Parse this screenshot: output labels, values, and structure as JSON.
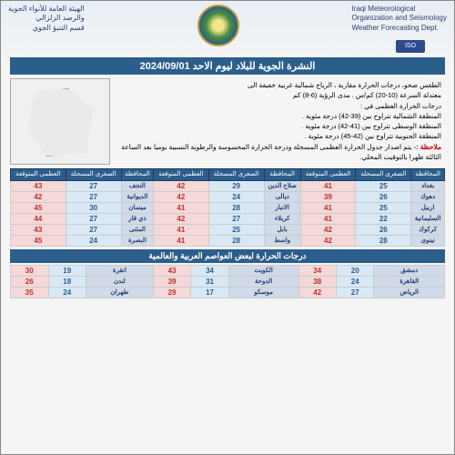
{
  "header": {
    "left_line1": "Iraqi Meteorological",
    "left_line2": "Organization and Seismology",
    "left_line3": "Weather Forecasting Dept.",
    "right_line1": "الهيئة العامة للأنواء الجوية",
    "right_line2": "والرصد الزلزالي",
    "right_line3": "قسم التنبؤ الجوي",
    "iso": "ISO"
  },
  "title": "النشرة الجوية للبلاد ليوم الاحد  2024/09/01",
  "forecast": {
    "l1": "الطقس صحو، درجات الحرارة مقاربة ، الرياح شمالية غربية خفيفة الى",
    "l2": "معتدلة السرعة (10-20) كم/س . مدى الرؤية (6-8) كم",
    "l3": "درجات الحرارة العظمى في :",
    "l4": "المنطقة الشمالية تتراوح بين (39-42) درجة مئوية .",
    "l5": "المنطقة الوسطى تتراوح بين (41-42) درجة مئوية .",
    "l6": "المنطقة الجنوبية تتراوح بين (42-45) درجة مئوية .",
    "note_label": "ملاحظة :-",
    "note": " يتم اصدار جدول الحرارة العظمى المسجلة ودرجة الحرارة المحسوسة والرطوبة النسبية يوميا بعد الساعة الثالثة ظهرا بالتوقيت المحلي."
  },
  "cols": {
    "prov": "المحافظة",
    "min": "الصغرى المسجلة",
    "max": "العظمى المتوقعة"
  },
  "iraq": [
    [
      {
        "p": "بغداد",
        "min": "25",
        "max": "41"
      },
      {
        "p": "صلاح الدين",
        "min": "29",
        "max": "42"
      },
      {
        "p": "النجف",
        "min": "27",
        "max": "43"
      }
    ],
    [
      {
        "p": "دهوك",
        "min": "26",
        "max": "39"
      },
      {
        "p": "ديالى",
        "min": "24",
        "max": "42"
      },
      {
        "p": "الديوانية",
        "min": "27",
        "max": "42"
      }
    ],
    [
      {
        "p": "اربيل",
        "min": "25",
        "max": "41"
      },
      {
        "p": "الانبار",
        "min": "28",
        "max": "41"
      },
      {
        "p": "ميسان",
        "min": "30",
        "max": "45"
      }
    ],
    [
      {
        "p": "السليمانية",
        "min": "22",
        "max": "41"
      },
      {
        "p": "كربلاء",
        "min": "27",
        "max": "42"
      },
      {
        "p": "ذي قار",
        "min": "27",
        "max": "44"
      }
    ],
    [
      {
        "p": "كركوك",
        "min": "26",
        "max": "42"
      },
      {
        "p": "بابل",
        "min": "25",
        "max": "41"
      },
      {
        "p": "المثنى",
        "min": "27",
        "max": "43"
      }
    ],
    [
      {
        "p": "نينوى",
        "min": "28",
        "max": "42"
      },
      {
        "p": "واسط",
        "min": "28",
        "max": "41"
      },
      {
        "p": "البصرة",
        "min": "24",
        "max": "45"
      }
    ]
  ],
  "world_title": "درجات الحرارة لبعض العواصم العربية والعالمية",
  "world": [
    [
      {
        "c": "دمشق",
        "min": "20",
        "max": "34"
      },
      {
        "c": "الكويت",
        "min": "34",
        "max": "43"
      },
      {
        "c": "انقرة",
        "min": "19",
        "max": "30"
      }
    ],
    [
      {
        "c": "القاهرة",
        "min": "24",
        "max": "38"
      },
      {
        "c": "الدوحة",
        "min": "31",
        "max": "39"
      },
      {
        "c": "لندن",
        "min": "18",
        "max": "26"
      }
    ],
    [
      {
        "c": "الرياض",
        "min": "27",
        "max": "42"
      },
      {
        "c": "موسكو",
        "min": "17",
        "max": "29"
      },
      {
        "c": "طهران",
        "min": "24",
        "max": "35"
      }
    ]
  ]
}
